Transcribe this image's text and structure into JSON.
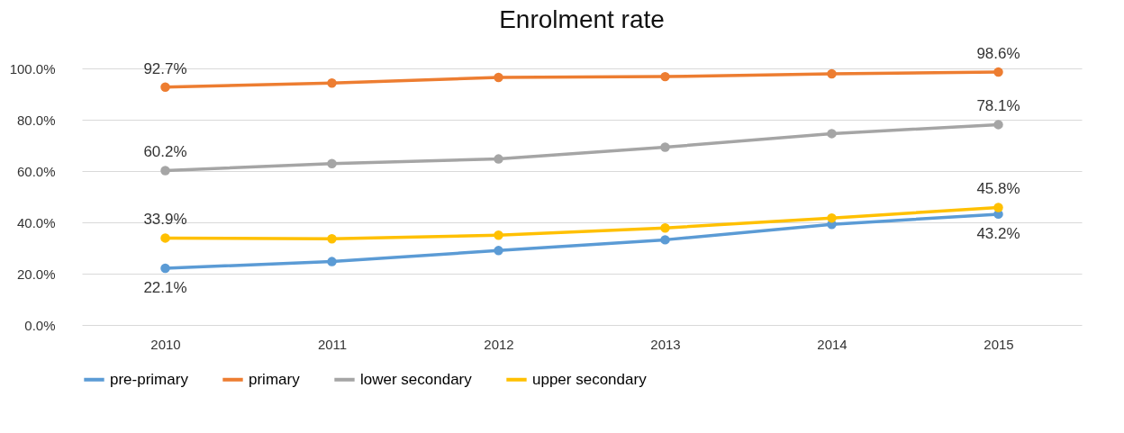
{
  "chart_data": {
    "type": "line",
    "title": "Enrolment rate",
    "categories": [
      "2010",
      "2011",
      "2012",
      "2013",
      "2014",
      "2015"
    ],
    "series": [
      {
        "name": "pre-primary",
        "color": "#5b9bd5",
        "values": [
          22.1,
          24.7,
          29.0,
          33.2,
          39.2,
          43.2
        ],
        "value_labels": [
          "22.1%",
          null,
          null,
          null,
          null,
          "43.2%"
        ]
      },
      {
        "name": "primary",
        "color": "#ed7d31",
        "values": [
          92.7,
          94.3,
          96.5,
          96.8,
          97.9,
          98.6
        ],
        "value_labels": [
          "92.7%",
          null,
          null,
          null,
          null,
          "98.6%"
        ]
      },
      {
        "name": "lower secondary",
        "color": "#a5a5a5",
        "values": [
          60.2,
          62.9,
          64.7,
          69.3,
          74.6,
          78.1
        ],
        "value_labels": [
          "60.2%",
          null,
          null,
          null,
          null,
          "78.1%"
        ]
      },
      {
        "name": "upper secondary",
        "color": "#ffc000",
        "values": [
          33.9,
          33.6,
          35.0,
          37.8,
          41.7,
          45.8
        ],
        "value_labels": [
          "33.9%",
          null,
          null,
          null,
          null,
          "45.8%"
        ]
      }
    ],
    "ylim": [
      0,
      100
    ],
    "yticks": [
      {
        "value": 0,
        "label": "0.0%"
      },
      {
        "value": 20,
        "label": "20.0%"
      },
      {
        "value": 40,
        "label": "40.0%"
      },
      {
        "value": 60,
        "label": "60.0%"
      },
      {
        "value": 80,
        "label": "80.0%"
      },
      {
        "value": 100,
        "label": "100.0%"
      }
    ],
    "grid": "y",
    "legend": "bottom",
    "marker": "circle",
    "line_style": "solid"
  }
}
